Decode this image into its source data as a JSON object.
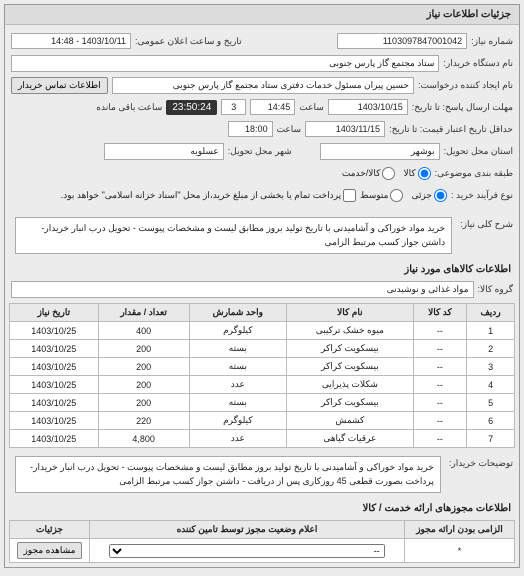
{
  "panel": {
    "title": "جزئیات اطلاعات نیاز"
  },
  "fields": {
    "need_no_lbl": "شماره نیاز:",
    "need_no": "1103097847001042",
    "announce_dt_lbl": "تاریخ و ساعت اعلان عمومی:",
    "announce_dt": "1403/10/11 - 14:48",
    "buyer_lbl": "نام دستگاه خریدار:",
    "buyer": "ستاد مجتمع گاز پارس جنوبی",
    "requester_lbl": "نام ایجاد کننده درخواست:",
    "requester": "حسین پیران مسئول خدمات دفتری ستاد مجتمع گاز پارس جنوبی",
    "contact_btn": "اطلاعات تماس خریدار",
    "deadline_lbl": "مهلت ارسال پاسخ: تا تاریخ:",
    "deadline_date": "1403/10/15",
    "time_lbl": "ساعت",
    "deadline_time": "14:45",
    "countdown": "23:50:24",
    "remain_days": "3",
    "remain_txt": "ساعت باقی مانده",
    "validity_lbl": "حداقل تاریخ اعتبار قیمت: تا تاریخ:",
    "validity_date": "1403/11/15",
    "validity_time": "18:00",
    "delivery_state_lbl": "استان محل تحویل:",
    "delivery_state": "بوشهر",
    "delivery_city_lbl": "شهر محل تحویل:",
    "delivery_city": "عسلویه",
    "category_lbl": "طبقه بندی موضوعی:",
    "cat_kala": "کالا",
    "cat_service": "کالا/خدمت",
    "process_lbl": "نوع فرآیند خرید :",
    "proc_low": "جزئی",
    "proc_mid": "متوسط",
    "proc_note": "پرداخت تمام یا بخشی از مبلغ خرید،از محل \"اسناد خزانه اسلامی\" خواهد بود.",
    "overall_lbl": "شرح کلی نیاز:",
    "overall_txt": "خرید مواد خوراکی و آشامیدنی با تاریخ تولید بروز مطابق لیست و مشخصات پیوست - تحویل درب انبار خریدار- داشتن جواز کسب مرتبط الزامی",
    "items_header": "اطلاعات کالاهای مورد نیاز",
    "item_group_lbl": "گروه کالا:",
    "item_group": "مواد غذائی و نوشیدنی",
    "buyer_notes_lbl": "توضیحات خریدار:",
    "buyer_notes": "خرید مواد خوراکی و آشامیدنی با تاریخ تولید بروز مطابق لیست و مشخصات پیوست - تحویل درب انبار خریدار- پرداخت بصورت قطعی 45 روزکاری پس از دریافت - داشتن جواز کسب مرتبط الزامی",
    "permits_header": "اطلاعات مجوزهای ارائه خدمت / کالا"
  },
  "table": {
    "cols": [
      "ردیف",
      "کد کالا",
      "نام کالا",
      "واحد شمارش",
      "تعداد / مقدار",
      "تاریخ نیاز"
    ],
    "rows": [
      [
        "1",
        "--",
        "میوه خشک ترکیبی",
        "کیلوگرم",
        "400",
        "1403/10/25"
      ],
      [
        "2",
        "--",
        "بیسکویت کراکر",
        "بسته",
        "200",
        "1403/10/25"
      ],
      [
        "3",
        "--",
        "بیسکویت کراکر",
        "بسته",
        "200",
        "1403/10/25"
      ],
      [
        "4",
        "--",
        "شکلات پذیرایی",
        "عدد",
        "200",
        "1403/10/25"
      ],
      [
        "5",
        "--",
        "بیسکویت کراکر",
        "بسته",
        "200",
        "1403/10/25"
      ],
      [
        "6",
        "--",
        "کشمش",
        "کیلوگرم",
        "220",
        "1403/10/25"
      ],
      [
        "7",
        "--",
        "عرقیات گیاهی",
        "عدد",
        "4,800",
        "1403/10/25"
      ]
    ]
  },
  "permits_table": {
    "cols": [
      "الزامی بودن ارائه مجوز",
      "اعلام وضعیت مجوز توسط تامین کننده",
      "جزئیات"
    ],
    "mandatory": "*",
    "select_placeholder": "--",
    "view_btn": "مشاهده مجوز"
  }
}
